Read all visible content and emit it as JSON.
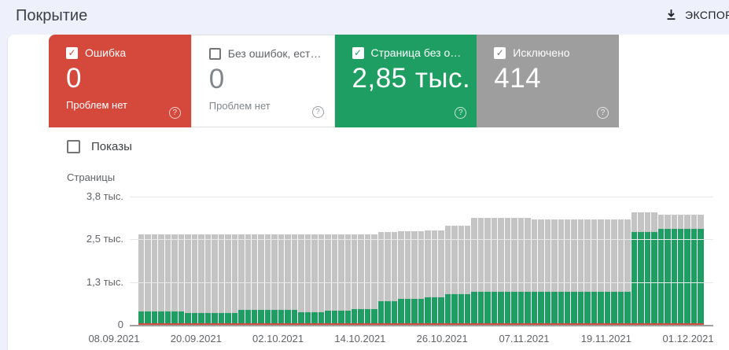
{
  "header": {
    "title": "Покрытие",
    "export_label": "ЭКСПОР"
  },
  "icons": {
    "check_glyph": "✓",
    "help_glyph": "?",
    "export_icon": "download-icon"
  },
  "colors": {
    "error": "#d5493c",
    "valid": "#1e9e62",
    "excluded_card": "#9e9e9e",
    "excluded_bar": "#c4c4c4",
    "strip_bg": "#eef1fb",
    "muted_text": "#5f6368"
  },
  "cards": [
    {
      "id": "error",
      "label": "Ошибка",
      "value": "0",
      "subtitle": "Проблем нет",
      "checked": true,
      "color": "#d5493c"
    },
    {
      "id": "valid-with-warnings",
      "label": "Без ошибок, ест…",
      "value": "0",
      "subtitle": "Проблем нет",
      "checked": false,
      "color": "#ffffff"
    },
    {
      "id": "valid",
      "label": "Страница без о…",
      "value": "2,85 тыс.",
      "subtitle": "",
      "checked": true,
      "color": "#1e9e62"
    },
    {
      "id": "excluded",
      "label": "Исключено",
      "value": "414",
      "subtitle": "",
      "checked": true,
      "color": "#9e9e9e"
    }
  ],
  "impressions_toggle": {
    "label": "Показы",
    "checked": false
  },
  "chart_data": {
    "type": "bar",
    "stacked": true,
    "title": "",
    "ylabel": "Страницы",
    "ymax": 3800,
    "grid": true,
    "legend": "none",
    "x_start": "08.09.2021",
    "x_end": "01.12.2021",
    "x_interval": "daily",
    "xticks": [
      "08.09.2021",
      "20.09.2021",
      "02.10.2021",
      "14.10.2021",
      "26.10.2021",
      "07.11.2021",
      "19.11.2021",
      "01.12.2021"
    ],
    "yticks": [
      {
        "label": "0",
        "value": 0
      },
      {
        "label": "1,3 тыс.",
        "value": 1267
      },
      {
        "label": "2,5 тыс.",
        "value": 2533
      },
      {
        "label": "3,8 тыс.",
        "value": 3800
      }
    ],
    "series": [
      {
        "id": "error",
        "name": "Ошибка",
        "color": "#d5493c",
        "values": [
          0,
          0,
          0,
          0,
          0,
          0,
          0,
          0,
          0,
          0,
          0,
          0,
          0,
          0,
          0,
          0,
          0,
          0,
          0,
          0,
          0,
          0,
          0,
          0,
          0,
          0,
          0,
          0,
          0,
          0,
          0,
          0,
          0,
          0,
          0,
          0,
          0,
          0,
          0,
          0,
          0,
          0,
          0,
          0,
          0,
          0,
          0,
          0,
          0,
          0,
          0,
          0,
          0,
          0,
          0,
          0,
          0,
          0,
          0,
          0,
          0,
          0,
          0,
          0,
          0,
          0,
          0,
          0,
          0,
          0,
          0,
          0,
          0,
          0,
          0,
          0,
          0,
          0,
          0,
          0,
          0,
          0,
          0,
          0,
          0
        ]
      },
      {
        "id": "valid",
        "name": "Страница без ошибок",
        "color": "#1e9e62",
        "values": [
          400,
          400,
          400,
          400,
          400,
          400,
          400,
          350,
          350,
          350,
          350,
          350,
          350,
          350,
          350,
          450,
          450,
          450,
          450,
          450,
          450,
          450,
          450,
          450,
          380,
          380,
          380,
          380,
          420,
          420,
          420,
          420,
          460,
          460,
          460,
          460,
          690,
          690,
          690,
          760,
          760,
          760,
          760,
          810,
          810,
          810,
          920,
          920,
          920,
          920,
          970,
          970,
          970,
          970,
          970,
          970,
          970,
          970,
          970,
          990,
          990,
          990,
          990,
          990,
          990,
          990,
          990,
          990,
          990,
          990,
          990,
          990,
          990,
          990,
          2750,
          2750,
          2750,
          2750,
          2850,
          2850,
          2850,
          2850,
          2850,
          2850,
          2850
        ]
      },
      {
        "id": "excluded",
        "name": "Исключено",
        "color": "#c4c4c4",
        "values": [
          2270,
          2270,
          2270,
          2270,
          2270,
          2270,
          2270,
          2320,
          2320,
          2320,
          2320,
          2320,
          2320,
          2320,
          2320,
          2220,
          2220,
          2220,
          2220,
          2220,
          2220,
          2220,
          2220,
          2220,
          2290,
          2290,
          2290,
          2290,
          2250,
          2250,
          2250,
          2250,
          2220,
          2220,
          2220,
          2220,
          2060,
          2060,
          2060,
          2010,
          2010,
          2010,
          2010,
          1990,
          1990,
          1990,
          2010,
          2010,
          2010,
          2010,
          2200,
          2200,
          2200,
          2200,
          2200,
          2200,
          2200,
          2200,
          2200,
          2140,
          2140,
          2140,
          2140,
          2140,
          2140,
          2140,
          2140,
          2140,
          2140,
          2140,
          2140,
          2140,
          2140,
          2140,
          580,
          580,
          580,
          580,
          410,
          410,
          410,
          410,
          410,
          410,
          410
        ]
      }
    ]
  }
}
